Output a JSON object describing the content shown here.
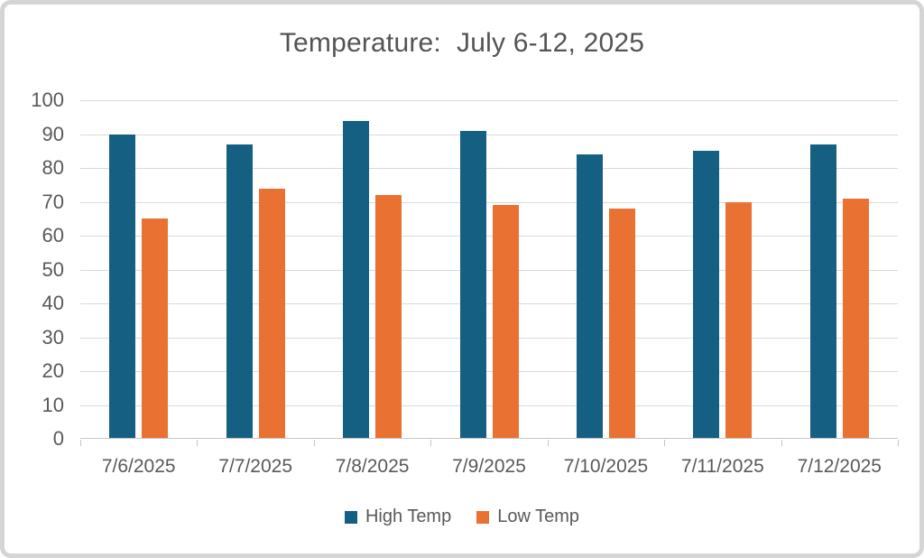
{
  "chart_data": {
    "type": "bar",
    "title": "Temperature:  July 6-12, 2025",
    "categories": [
      "7/6/2025",
      "7/7/2025",
      "7/8/2025",
      "7/9/2025",
      "7/10/2025",
      "7/11/2025",
      "7/12/2025"
    ],
    "series": [
      {
        "name": "High Temp",
        "color": "#156082",
        "values": [
          90,
          87,
          94,
          91,
          84,
          85,
          87
        ]
      },
      {
        "name": "Low Temp",
        "color": "#E97132",
        "values": [
          65,
          74,
          72,
          69,
          68,
          70,
          71
        ]
      }
    ],
    "xlabel": "",
    "ylabel": "",
    "ylim": [
      0,
      100
    ],
    "ytick_step": 10,
    "grid": true,
    "legend_position": "bottom",
    "colors": {
      "title_text": "#545454",
      "axis_text": "#595959",
      "gridline": "#d9d9d9",
      "axis_line": "#c6c6c6",
      "frame_border": "#d5d5d5",
      "background": "#ffffff"
    }
  }
}
